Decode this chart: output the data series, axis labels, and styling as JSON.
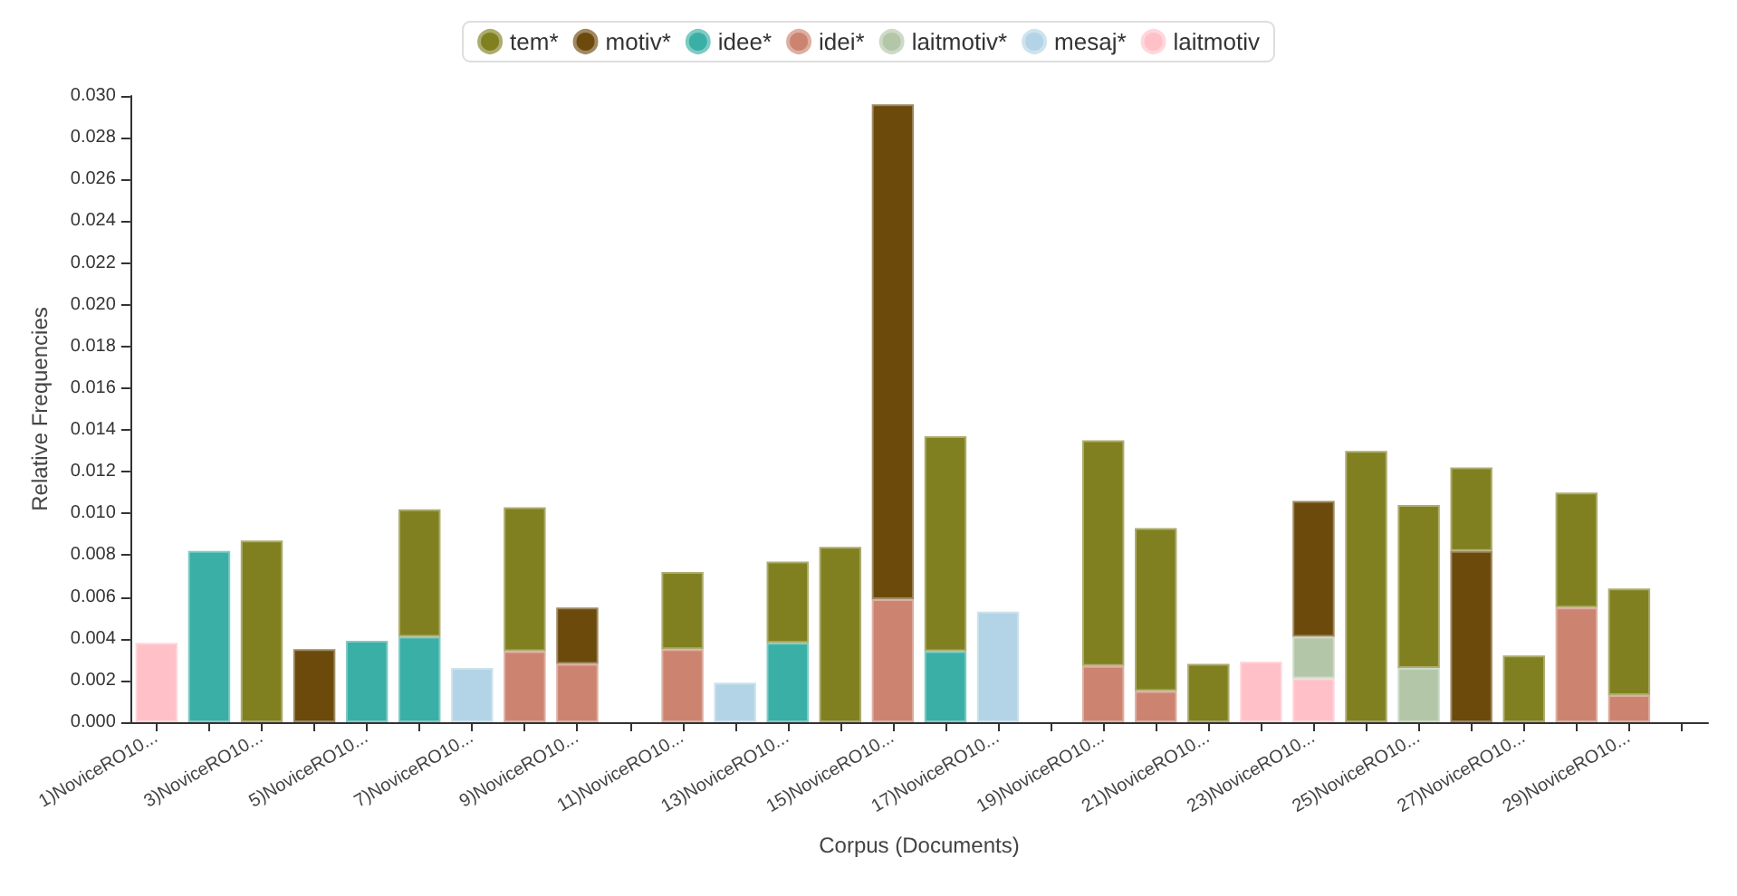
{
  "chart_data": {
    "type": "bar",
    "stacked": true,
    "xlabel": "Corpus (Documents)",
    "ylabel": "Relative Frequencies",
    "categories": [
      "1)NoviceRO10...",
      null,
      "3)NoviceRO10...",
      null,
      "5)NoviceRO10...",
      null,
      "7)NoviceRO10...",
      null,
      "9)NoviceRO10...",
      null,
      "11)NoviceRO10...",
      null,
      "13)NoviceRO10...",
      null,
      "15)NoviceRO10...",
      null,
      "17)NoviceRO10...",
      null,
      "19)NoviceRO10...",
      null,
      "21)NoviceRO10...",
      null,
      "23)NoviceRO10...",
      null,
      "25)NoviceRO10...",
      null,
      "27)NoviceRO10...",
      null,
      "29)NoviceRO10...",
      null
    ],
    "series": [
      {
        "name": "laitmotiv",
        "color": "#ffc0c8",
        "values": [
          0.0038,
          null,
          null,
          null,
          null,
          null,
          null,
          null,
          null,
          null,
          null,
          null,
          null,
          null,
          null,
          null,
          null,
          null,
          null,
          null,
          null,
          0.0029,
          0.0021,
          null,
          null,
          null,
          null,
          null,
          null,
          null
        ]
      },
      {
        "name": "mesaj*",
        "color": "#b3d4e6",
        "values": [
          null,
          null,
          null,
          null,
          null,
          null,
          0.0026,
          null,
          null,
          null,
          null,
          0.0019,
          null,
          null,
          null,
          null,
          0.0053,
          null,
          null,
          null,
          null,
          null,
          null,
          null,
          null,
          null,
          null,
          null,
          null,
          null
        ]
      },
      {
        "name": "laitmotiv*",
        "color": "#b3c7a8",
        "values": [
          null,
          null,
          null,
          null,
          null,
          null,
          null,
          null,
          null,
          null,
          null,
          null,
          null,
          null,
          null,
          null,
          null,
          null,
          null,
          null,
          null,
          null,
          0.002,
          null,
          0.0026,
          null,
          null,
          null,
          null,
          null
        ]
      },
      {
        "name": "idei*",
        "color": "#cc8470",
        "values": [
          null,
          null,
          null,
          null,
          null,
          null,
          null,
          0.0034,
          0.0028,
          null,
          0.0035,
          null,
          null,
          null,
          0.0059,
          null,
          null,
          null,
          0.0027,
          0.0015,
          null,
          null,
          null,
          null,
          null,
          null,
          null,
          0.0055,
          0.0013,
          null
        ]
      },
      {
        "name": "idee*",
        "color": "#3aafa5",
        "values": [
          null,
          0.0082,
          null,
          null,
          0.0039,
          0.0041,
          null,
          null,
          null,
          null,
          null,
          null,
          0.0038,
          null,
          null,
          0.0034,
          null,
          null,
          null,
          null,
          null,
          null,
          null,
          null,
          null,
          null,
          null,
          null,
          null,
          null
        ]
      },
      {
        "name": "motiv*",
        "color": "#6b4a0c",
        "values": [
          null,
          null,
          null,
          0.0035,
          null,
          null,
          null,
          null,
          0.0027,
          null,
          null,
          null,
          null,
          null,
          0.0237,
          null,
          null,
          null,
          null,
          null,
          null,
          null,
          0.0065,
          null,
          null,
          0.0082,
          null,
          null,
          null,
          null
        ]
      },
      {
        "name": "tem*",
        "color": "#808020",
        "values": [
          null,
          null,
          0.0087,
          null,
          null,
          0.0061,
          null,
          0.0069,
          null,
          null,
          0.0037,
          null,
          0.0039,
          0.0084,
          null,
          0.0103,
          null,
          null,
          0.0108,
          0.0078,
          0.0028,
          null,
          null,
          0.013,
          0.0078,
          0.004,
          0.0032,
          0.0055,
          0.0051,
          null
        ]
      }
    ],
    "ylim": [
      0,
      0.03
    ],
    "yticks": [
      {
        "value": 0,
        "label": "0.000"
      },
      {
        "value": 0.002,
        "label": "0.002"
      },
      {
        "value": 0.004,
        "label": "0.004"
      },
      {
        "value": 0.006,
        "label": "0.006"
      },
      {
        "value": 0.008,
        "label": "0.008"
      },
      {
        "value": 0.01,
        "label": "0.010"
      },
      {
        "value": 0.012,
        "label": "0.012"
      },
      {
        "value": 0.014,
        "label": "0.014"
      },
      {
        "value": 0.016,
        "label": "0.016"
      },
      {
        "value": 0.018,
        "label": "0.018"
      },
      {
        "value": 0.02,
        "label": "0.020"
      },
      {
        "value": 0.022,
        "label": "0.022"
      },
      {
        "value": 0.024,
        "label": "0.024"
      },
      {
        "value": 0.026,
        "label": "0.026"
      },
      {
        "value": 0.028,
        "label": "0.028"
      },
      {
        "value": 0.03,
        "label": "0.030"
      }
    ],
    "grid": false,
    "legend": "top"
  }
}
